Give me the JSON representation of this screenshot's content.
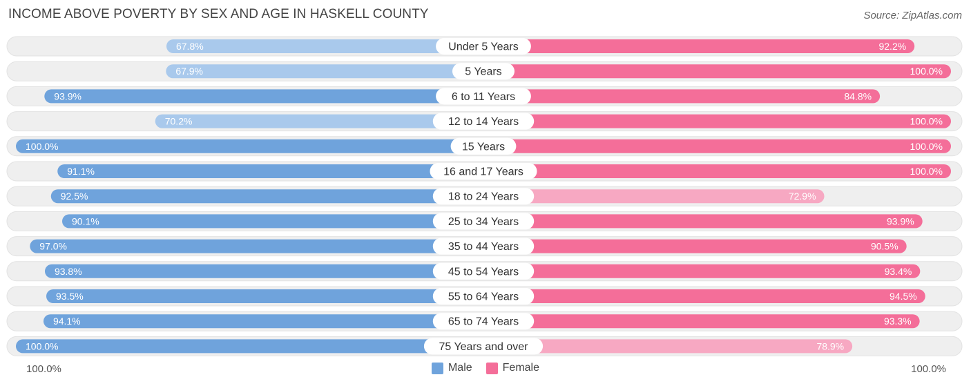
{
  "title": "INCOME ABOVE POVERTY BY SEX AND AGE IN HASKELL COUNTY",
  "source": "Source: ZipAtlas.com",
  "axis": {
    "left_label": "100.0%",
    "right_label": "100.0%"
  },
  "legend": {
    "male_label": "Male",
    "female_label": "Female"
  },
  "colors": {
    "male_strong": "#6fa3dc",
    "male_light": "#a9c9ec",
    "female_strong": "#f46e99",
    "female_light": "#f7a8c2",
    "track": "#efefef"
  },
  "chart_data": {
    "type": "bar",
    "orientation": "horizontal-diverging",
    "title": "INCOME ABOVE POVERTY BY SEX AND AGE IN HASKELL COUNTY",
    "xlim": [
      0,
      100
    ],
    "categories": [
      "Under 5 Years",
      "5 Years",
      "6 to 11 Years",
      "12 to 14 Years",
      "15 Years",
      "16 and 17 Years",
      "18 to 24 Years",
      "25 to 34 Years",
      "35 to 44 Years",
      "45 to 54 Years",
      "55 to 64 Years",
      "65 to 74 Years",
      "75 Years and over"
    ],
    "series": [
      {
        "name": "Male",
        "values": [
          67.8,
          67.9,
          93.9,
          70.2,
          100.0,
          91.1,
          92.5,
          90.1,
          97.0,
          93.8,
          93.5,
          94.1,
          100.0
        ],
        "labels": [
          "67.8%",
          "67.9%",
          "93.9%",
          "70.2%",
          "100.0%",
          "91.1%",
          "92.5%",
          "90.1%",
          "97.0%",
          "93.8%",
          "93.5%",
          "94.1%",
          "100.0%"
        ]
      },
      {
        "name": "Female",
        "values": [
          92.2,
          100.0,
          84.8,
          100.0,
          100.0,
          100.0,
          72.9,
          93.9,
          90.5,
          93.4,
          94.5,
          93.3,
          78.9
        ],
        "labels": [
          "92.2%",
          "100.0%",
          "84.8%",
          "100.0%",
          "100.0%",
          "100.0%",
          "72.9%",
          "93.9%",
          "90.5%",
          "93.4%",
          "94.5%",
          "93.3%",
          "78.9%"
        ]
      }
    ]
  }
}
